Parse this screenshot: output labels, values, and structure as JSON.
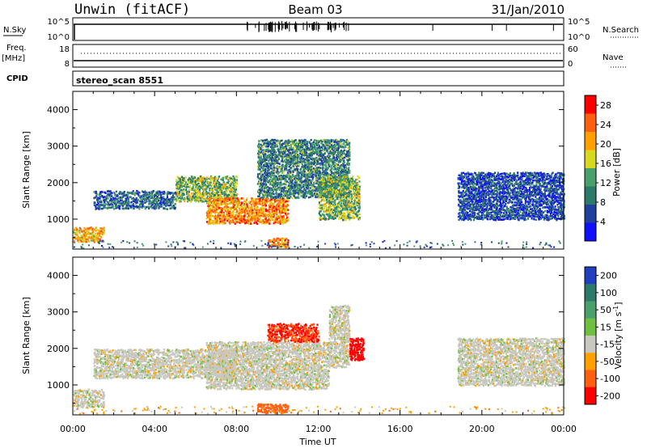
{
  "header": {
    "station": "Unwin (fitACF)",
    "beam": "Beam 03",
    "date": "31/Jan/2010"
  },
  "strip_noise": {
    "left_label": "N.Sky",
    "right_label": "N.Search",
    "left_ticks": [
      "10^5",
      "10^0"
    ],
    "right_ticks": [
      "10^5",
      "10^0"
    ]
  },
  "strip_freq": {
    "left_label_1": "Freq.",
    "left_label_2": "[MHz]",
    "right_label": "Nave",
    "left_ticks": [
      "18",
      "8"
    ],
    "right_ticks": [
      "60",
      "0"
    ]
  },
  "strip_cpid": {
    "label": "CPID",
    "value": "stereo_scan 8551"
  },
  "chart_data": [
    {
      "type": "heatmap",
      "title": "",
      "xlabel": "",
      "ylabel": "Slant Range [km]",
      "x_range_hours": [
        0,
        24
      ],
      "ylim": [
        180,
        4500
      ],
      "yticks": [
        1000,
        2000,
        3000,
        4000
      ],
      "colorbar": {
        "label": "Power [dB]",
        "ticks": [
          4,
          8,
          12,
          16,
          20,
          24,
          28
        ],
        "range": [
          0,
          30
        ],
        "colors": [
          "#1010ff",
          "#2040a0",
          "#2e7a6a",
          "#4aa06a",
          "#d8d820",
          "#ffa000",
          "#ff6010",
          "#ff0000"
        ]
      },
      "regions": [
        {
          "t0": 0.0,
          "t1": 1.5,
          "r0": 400,
          "r1": 800,
          "level": 20
        },
        {
          "t0": 1.0,
          "t1": 5.0,
          "r0": 1300,
          "r1": 1800,
          "level": 8
        },
        {
          "t0": 5.0,
          "t1": 8.0,
          "r0": 1500,
          "r1": 2200,
          "level": 14
        },
        {
          "t0": 6.5,
          "t1": 10.5,
          "r0": 900,
          "r1": 1600,
          "level": 22
        },
        {
          "t0": 9.0,
          "t1": 13.5,
          "r0": 1600,
          "r1": 3200,
          "level": 10
        },
        {
          "t0": 9.5,
          "t1": 10.5,
          "r0": 250,
          "r1": 500,
          "level": 22
        },
        {
          "t0": 12.0,
          "t1": 14.0,
          "r0": 1000,
          "r1": 2200,
          "level": 14
        },
        {
          "t0": 18.8,
          "t1": 24.0,
          "r0": 1000,
          "r1": 2300,
          "level": 6
        }
      ]
    },
    {
      "type": "heatmap",
      "title": "",
      "xlabel": "Time UT",
      "ylabel": "Slant Range [km]",
      "x_range_hours": [
        0,
        24
      ],
      "ylim": [
        180,
        4500
      ],
      "yticks": [
        1000,
        2000,
        3000,
        4000
      ],
      "xticks": [
        "00:00",
        "04:00",
        "08:00",
        "12:00",
        "16:00",
        "20:00",
        "00:00"
      ],
      "colorbar": {
        "label": "Velocity [m s^-1]",
        "ticks": [
          200,
          100,
          50,
          15,
          -15,
          -50,
          -100,
          -200
        ],
        "colors": [
          "#2040c0",
          "#2e7a6a",
          "#4aa06a",
          "#70c040",
          "#c8c8c0",
          "#ffa000",
          "#ff6010",
          "#ff0000"
        ]
      },
      "regions": [
        {
          "t0": 0.0,
          "t1": 1.5,
          "r0": 400,
          "r1": 900,
          "v": 0
        },
        {
          "t0": 1.0,
          "t1": 8.0,
          "r0": 1200,
          "r1": 2000,
          "v": 0
        },
        {
          "t0": 6.5,
          "t1": 12.5,
          "r0": 900,
          "r1": 2200,
          "v": -10
        },
        {
          "t0": 9.5,
          "t1": 12.0,
          "r0": 2200,
          "r1": 2700,
          "v": -150
        },
        {
          "t0": 12.5,
          "t1": 13.5,
          "r0": 1500,
          "r1": 3200,
          "v": 0
        },
        {
          "t0": 13.5,
          "t1": 14.2,
          "r0": 1700,
          "r1": 2300,
          "v": -220
        },
        {
          "t0": 9.0,
          "t1": 10.5,
          "r0": 250,
          "r1": 500,
          "v": -100
        },
        {
          "t0": 18.8,
          "t1": 24.0,
          "r0": 1000,
          "r1": 2300,
          "v": -10
        }
      ]
    }
  ]
}
